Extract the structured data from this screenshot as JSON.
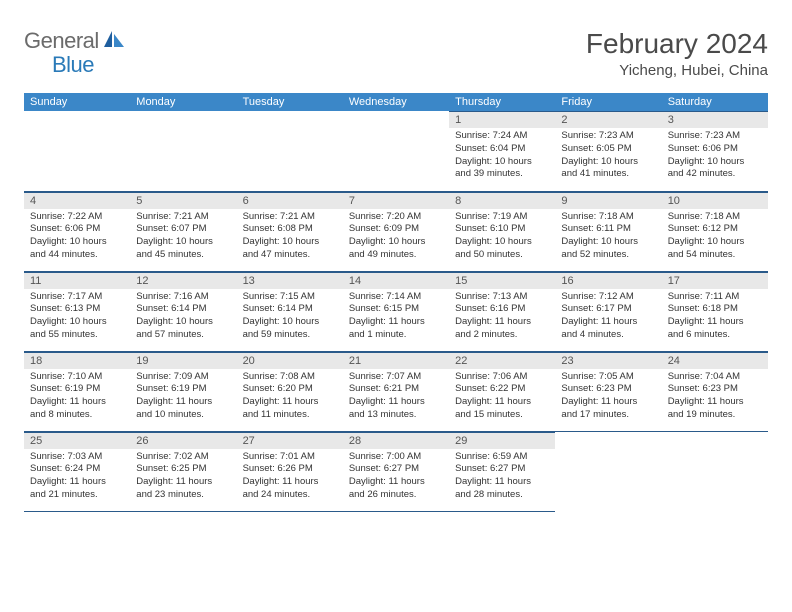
{
  "logo": {
    "text1": "General",
    "text2": "Blue"
  },
  "title": "February 2024",
  "location": "Yicheng, Hubei, China",
  "colors": {
    "header_band": "#3b87c8",
    "daynum_band": "#e8e8e8",
    "rule": "#2a5a8a",
    "logo_gray": "#6b6b6b",
    "logo_blue": "#2a7ab8"
  },
  "dow": [
    "Sunday",
    "Monday",
    "Tuesday",
    "Wednesday",
    "Thursday",
    "Friday",
    "Saturday"
  ],
  "weeks": [
    [
      null,
      null,
      null,
      null,
      {
        "n": "1",
        "sunrise": "7:24 AM",
        "sunset": "6:04 PM",
        "dl1": "Daylight: 10 hours",
        "dl2": "and 39 minutes."
      },
      {
        "n": "2",
        "sunrise": "7:23 AM",
        "sunset": "6:05 PM",
        "dl1": "Daylight: 10 hours",
        "dl2": "and 41 minutes."
      },
      {
        "n": "3",
        "sunrise": "7:23 AM",
        "sunset": "6:06 PM",
        "dl1": "Daylight: 10 hours",
        "dl2": "and 42 minutes."
      }
    ],
    [
      {
        "n": "4",
        "sunrise": "7:22 AM",
        "sunset": "6:06 PM",
        "dl1": "Daylight: 10 hours",
        "dl2": "and 44 minutes."
      },
      {
        "n": "5",
        "sunrise": "7:21 AM",
        "sunset": "6:07 PM",
        "dl1": "Daylight: 10 hours",
        "dl2": "and 45 minutes."
      },
      {
        "n": "6",
        "sunrise": "7:21 AM",
        "sunset": "6:08 PM",
        "dl1": "Daylight: 10 hours",
        "dl2": "and 47 minutes."
      },
      {
        "n": "7",
        "sunrise": "7:20 AM",
        "sunset": "6:09 PM",
        "dl1": "Daylight: 10 hours",
        "dl2": "and 49 minutes."
      },
      {
        "n": "8",
        "sunrise": "7:19 AM",
        "sunset": "6:10 PM",
        "dl1": "Daylight: 10 hours",
        "dl2": "and 50 minutes."
      },
      {
        "n": "9",
        "sunrise": "7:18 AM",
        "sunset": "6:11 PM",
        "dl1": "Daylight: 10 hours",
        "dl2": "and 52 minutes."
      },
      {
        "n": "10",
        "sunrise": "7:18 AM",
        "sunset": "6:12 PM",
        "dl1": "Daylight: 10 hours",
        "dl2": "and 54 minutes."
      }
    ],
    [
      {
        "n": "11",
        "sunrise": "7:17 AM",
        "sunset": "6:13 PM",
        "dl1": "Daylight: 10 hours",
        "dl2": "and 55 minutes."
      },
      {
        "n": "12",
        "sunrise": "7:16 AM",
        "sunset": "6:14 PM",
        "dl1": "Daylight: 10 hours",
        "dl2": "and 57 minutes."
      },
      {
        "n": "13",
        "sunrise": "7:15 AM",
        "sunset": "6:14 PM",
        "dl1": "Daylight: 10 hours",
        "dl2": "and 59 minutes."
      },
      {
        "n": "14",
        "sunrise": "7:14 AM",
        "sunset": "6:15 PM",
        "dl1": "Daylight: 11 hours",
        "dl2": "and 1 minute."
      },
      {
        "n": "15",
        "sunrise": "7:13 AM",
        "sunset": "6:16 PM",
        "dl1": "Daylight: 11 hours",
        "dl2": "and 2 minutes."
      },
      {
        "n": "16",
        "sunrise": "7:12 AM",
        "sunset": "6:17 PM",
        "dl1": "Daylight: 11 hours",
        "dl2": "and 4 minutes."
      },
      {
        "n": "17",
        "sunrise": "7:11 AM",
        "sunset": "6:18 PM",
        "dl1": "Daylight: 11 hours",
        "dl2": "and 6 minutes."
      }
    ],
    [
      {
        "n": "18",
        "sunrise": "7:10 AM",
        "sunset": "6:19 PM",
        "dl1": "Daylight: 11 hours",
        "dl2": "and 8 minutes."
      },
      {
        "n": "19",
        "sunrise": "7:09 AM",
        "sunset": "6:19 PM",
        "dl1": "Daylight: 11 hours",
        "dl2": "and 10 minutes."
      },
      {
        "n": "20",
        "sunrise": "7:08 AM",
        "sunset": "6:20 PM",
        "dl1": "Daylight: 11 hours",
        "dl2": "and 11 minutes."
      },
      {
        "n": "21",
        "sunrise": "7:07 AM",
        "sunset": "6:21 PM",
        "dl1": "Daylight: 11 hours",
        "dl2": "and 13 minutes."
      },
      {
        "n": "22",
        "sunrise": "7:06 AM",
        "sunset": "6:22 PM",
        "dl1": "Daylight: 11 hours",
        "dl2": "and 15 minutes."
      },
      {
        "n": "23",
        "sunrise": "7:05 AM",
        "sunset": "6:23 PM",
        "dl1": "Daylight: 11 hours",
        "dl2": "and 17 minutes."
      },
      {
        "n": "24",
        "sunrise": "7:04 AM",
        "sunset": "6:23 PM",
        "dl1": "Daylight: 11 hours",
        "dl2": "and 19 minutes."
      }
    ],
    [
      {
        "n": "25",
        "sunrise": "7:03 AM",
        "sunset": "6:24 PM",
        "dl1": "Daylight: 11 hours",
        "dl2": "and 21 minutes."
      },
      {
        "n": "26",
        "sunrise": "7:02 AM",
        "sunset": "6:25 PM",
        "dl1": "Daylight: 11 hours",
        "dl2": "and 23 minutes."
      },
      {
        "n": "27",
        "sunrise": "7:01 AM",
        "sunset": "6:26 PM",
        "dl1": "Daylight: 11 hours",
        "dl2": "and 24 minutes."
      },
      {
        "n": "28",
        "sunrise": "7:00 AM",
        "sunset": "6:27 PM",
        "dl1": "Daylight: 11 hours",
        "dl2": "and 26 minutes."
      },
      {
        "n": "29",
        "sunrise": "6:59 AM",
        "sunset": "6:27 PM",
        "dl1": "Daylight: 11 hours",
        "dl2": "and 28 minutes."
      },
      null,
      null
    ]
  ],
  "labels": {
    "sunrise": "Sunrise: ",
    "sunset": "Sunset: "
  }
}
